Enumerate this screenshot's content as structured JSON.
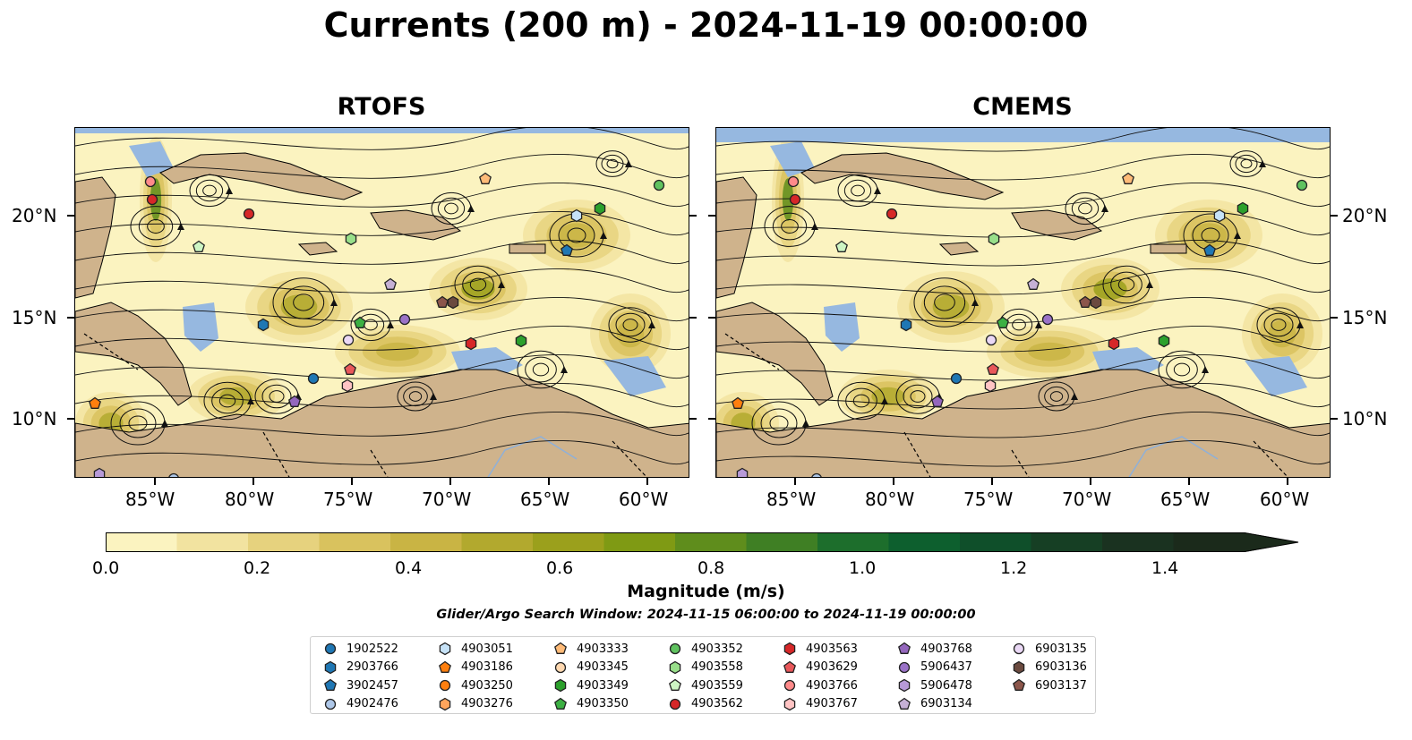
{
  "title": "Currents (200 m) - 2024-11-19 00:00:00",
  "panels": [
    {
      "title": "RTOFS"
    },
    {
      "title": "CMEMS"
    }
  ],
  "axes": {
    "lon_labels": [
      "85°W",
      "80°W",
      "75°W",
      "70°W",
      "65°W",
      "60°W"
    ],
    "lat_labels": [
      "20°N",
      "15°N",
      "10°N"
    ]
  },
  "colorbar": {
    "label": "Magnitude (m/s)",
    "tick_labels": [
      "0.0",
      "0.2",
      "0.4",
      "0.6",
      "0.8",
      "1.0",
      "1.2",
      "1.4"
    ],
    "colors": [
      "#fbf3c0",
      "#f2e3a0",
      "#e6d27e",
      "#d9c25e",
      "#c9b444",
      "#b2a92e",
      "#9ba01c",
      "#7f9a14",
      "#5f8d1c",
      "#3f7f24",
      "#1d6e2c",
      "#0d5f2e",
      "#0f4f2a",
      "#163f24",
      "#1a3220",
      "#1b2a1b"
    ],
    "extend": "max"
  },
  "search_window": "Glider/Argo Search Window: 2024-11-15 06:00:00 to 2024-11-19 00:00:00",
  "colors": {
    "land": "#cfb38c",
    "shallow": "#96b8e0",
    "ocean_low": "#fbf3c0"
  },
  "legend": [
    {
      "id": "1902522",
      "marker": "circle",
      "color": "#1f77b4"
    },
    {
      "id": "2903766",
      "marker": "hexagon",
      "color": "#1f77b4"
    },
    {
      "id": "3902457",
      "marker": "pentagon",
      "color": "#1f77b4"
    },
    {
      "id": "4902476",
      "marker": "circle",
      "color": "#aec7e8"
    },
    {
      "id": "4903051",
      "marker": "hexagon",
      "color": "#c6e2f7"
    },
    {
      "id": "4903186",
      "marker": "pentagon",
      "color": "#ff7f0e"
    },
    {
      "id": "4903250",
      "marker": "circle",
      "color": "#ff7f0e"
    },
    {
      "id": "4903276",
      "marker": "hexagon",
      "color": "#ffa55c"
    },
    {
      "id": "4903333",
      "marker": "pentagon",
      "color": "#ffbb78"
    },
    {
      "id": "4903345",
      "marker": "circle",
      "color": "#ffd8b0"
    },
    {
      "id": "4903349",
      "marker": "hexagon",
      "color": "#2ca02c"
    },
    {
      "id": "4903350",
      "marker": "pentagon",
      "color": "#3cb043"
    },
    {
      "id": "4903352",
      "marker": "circle",
      "color": "#5fc25f"
    },
    {
      "id": "4903558",
      "marker": "hexagon",
      "color": "#98df8a"
    },
    {
      "id": "4903559",
      "marker": "pentagon",
      "color": "#cdf5c4"
    },
    {
      "id": "4903562",
      "marker": "circle",
      "color": "#d62728"
    },
    {
      "id": "4903563",
      "marker": "hexagon",
      "color": "#d62728"
    },
    {
      "id": "4903629",
      "marker": "pentagon",
      "color": "#e8575a"
    },
    {
      "id": "4903766",
      "marker": "circle",
      "color": "#ff8a8a"
    },
    {
      "id": "4903767",
      "marker": "hexagon",
      "color": "#ffc4c4"
    },
    {
      "id": "4903768",
      "marker": "pentagon",
      "color": "#9467bd"
    },
    {
      "id": "5906437",
      "marker": "circle",
      "color": "#9a72c7"
    },
    {
      "id": "5906478",
      "marker": "hexagon",
      "color": "#b79ad8"
    },
    {
      "id": "6903134",
      "marker": "pentagon",
      "color": "#c5b0d5"
    },
    {
      "id": "6903135",
      "marker": "circle",
      "color": "#ead8f5"
    },
    {
      "id": "6903136",
      "marker": "hexagon",
      "color": "#6b4a3f"
    },
    {
      "id": "6903137",
      "marker": "pentagon",
      "color": "#8c564b"
    }
  ]
}
